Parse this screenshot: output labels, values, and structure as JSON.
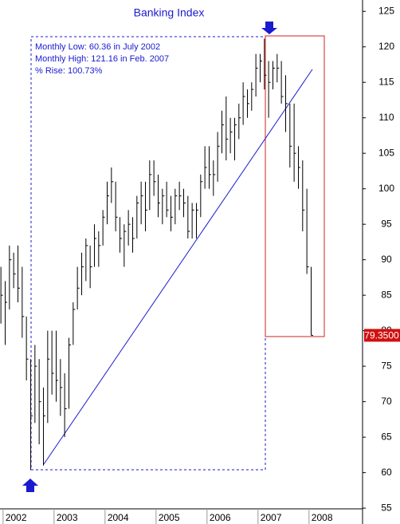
{
  "chart_data": {
    "type": "ohlc",
    "title": "Banking Index",
    "annotations": [
      "Monthly Low:  60.36 in July 2002",
      "Monthly High: 121.16 in Feb. 2007",
      "% Rise:  100.73%"
    ],
    "last_price": {
      "value": 79.35,
      "label": "79.3500"
    },
    "x": [
      2001.958,
      2002.042,
      2002.125,
      2002.208,
      2002.292,
      2002.375,
      2002.458,
      2002.542,
      2002.625,
      2002.708,
      2002.792,
      2002.875,
      2002.958,
      2003.042,
      2003.125,
      2003.208,
      2003.292,
      2003.375,
      2003.458,
      2003.542,
      2003.625,
      2003.708,
      2003.792,
      2003.875,
      2003.958,
      2004.042,
      2004.125,
      2004.208,
      2004.292,
      2004.375,
      2004.458,
      2004.542,
      2004.625,
      2004.708,
      2004.792,
      2004.875,
      2004.958,
      2005.042,
      2005.125,
      2005.208,
      2005.292,
      2005.375,
      2005.458,
      2005.542,
      2005.625,
      2005.708,
      2005.792,
      2005.875,
      2005.958,
      2006.042,
      2006.125,
      2006.208,
      2006.292,
      2006.375,
      2006.458,
      2006.542,
      2006.625,
      2006.708,
      2006.792,
      2006.875,
      2006.958,
      2007.042,
      2007.125,
      2007.208,
      2007.292,
      2007.375,
      2007.458,
      2007.542,
      2007.625,
      2007.708,
      2007.792,
      2007.875,
      2007.958,
      2008.042
    ],
    "high": [
      89,
      87,
      92,
      91,
      92,
      89,
      82,
      76,
      78,
      76,
      72,
      80,
      80,
      80,
      76,
      74,
      79,
      84,
      89,
      91,
      93,
      92,
      95,
      94,
      97,
      101,
      103,
      101,
      96,
      95,
      97,
      96,
      99,
      101,
      101,
      104,
      104,
      102,
      100,
      101,
      99,
      100,
      101,
      100,
      99,
      98,
      98,
      102,
      106,
      106,
      104,
      108,
      111,
      113,
      110,
      110,
      112,
      115,
      114,
      115,
      119,
      119,
      121.16,
      118,
      118,
      119,
      118,
      116,
      112,
      112,
      106,
      104,
      100,
      89
    ],
    "low": [
      81,
      78,
      83,
      86,
      84,
      79,
      73,
      60.36,
      67,
      64,
      61,
      67,
      71,
      70,
      68,
      65,
      69,
      78,
      83,
      85,
      87,
      86,
      89,
      89,
      92,
      95,
      98,
      94,
      91,
      89,
      92,
      91,
      93,
      95,
      94,
      97,
      99,
      96,
      95,
      96,
      94,
      95,
      97,
      96,
      93,
      93,
      93,
      96,
      100,
      100,
      99,
      101,
      105,
      104,
      105,
      104,
      107,
      109,
      110,
      111,
      113,
      115,
      114,
      110,
      114,
      115,
      112,
      108,
      103,
      101,
      100,
      94,
      88,
      79.35
    ],
    "close": [
      85,
      84,
      90,
      88,
      86,
      82,
      76,
      68,
      75,
      70,
      68,
      76,
      74,
      73,
      72,
      69,
      78,
      83,
      86,
      89,
      92,
      89,
      93,
      92,
      96,
      99,
      101,
      96,
      93,
      94,
      95,
      93,
      98,
      99,
      97,
      102,
      101,
      98,
      99,
      97,
      96,
      99,
      99,
      98,
      94,
      97,
      97,
      101,
      103,
      102,
      102,
      106,
      109,
      107,
      108,
      109,
      110,
      113,
      112,
      114,
      117,
      118,
      116,
      115,
      117,
      117,
      113,
      112,
      106,
      105,
      103,
      97,
      89,
      79.35
    ],
    "color": "#000000",
    "xlim": [
      2001.94,
      2009.05
    ],
    "xticks": [
      2002,
      2003,
      2004,
      2005,
      2006,
      2007,
      2008
    ],
    "ylim": [
      54.9,
      126.6
    ],
    "yticks": [
      55,
      60,
      65,
      70,
      75,
      80,
      85,
      90,
      95,
      100,
      105,
      110,
      115,
      120,
      125
    ]
  }
}
